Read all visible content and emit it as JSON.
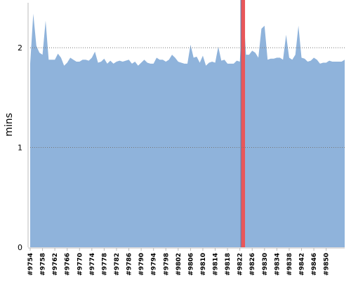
{
  "chart_data": {
    "type": "area",
    "title": "",
    "xlabel": "",
    "ylabel": "mins",
    "ylim": [
      0,
      2.45
    ],
    "yticks": [
      0,
      1,
      2
    ],
    "grid": "horizontal-dotted",
    "colors": {
      "area": "#8fb3db",
      "marker": "#e8575a",
      "marker_edge": "#5b7fb0",
      "grid": "#777777"
    },
    "x_start_build": 9754,
    "x_tick_labels": [
      "#9754",
      "#9758",
      "#9762",
      "#9766",
      "#9770",
      "#9774",
      "#9778",
      "#9782",
      "#9786",
      "#9790",
      "#9794",
      "#9798",
      "#9802",
      "#9806",
      "#9810",
      "#9814",
      "#9818",
      "#9822",
      "#9826",
      "#9830",
      "#9834",
      "#9838",
      "#9842",
      "#9846",
      "#9850"
    ],
    "series": [
      {
        "values": [
          1.84,
          2.34,
          2.02,
          1.95,
          1.93,
          2.27,
          1.88,
          1.88,
          1.88,
          1.94,
          1.9,
          1.82,
          1.85,
          1.9,
          1.88,
          1.86,
          1.86,
          1.88,
          1.88,
          1.87,
          1.9,
          1.96,
          1.85,
          1.86,
          1.89,
          1.84,
          1.87,
          1.84,
          1.86,
          1.87,
          1.86,
          1.87,
          1.88,
          1.84,
          1.86,
          1.82,
          1.85,
          1.88,
          1.85,
          1.84,
          1.84,
          1.9,
          1.88,
          1.88,
          1.86,
          1.88,
          1.93,
          1.9,
          1.86,
          1.85,
          1.84,
          1.84,
          2.03,
          1.9,
          1.91,
          1.85,
          1.92,
          1.82,
          1.85,
          1.86,
          1.85,
          2.01,
          1.87,
          1.88,
          1.84,
          1.84,
          1.84,
          1.87,
          1.86,
          2.46,
          1.93,
          1.93,
          1.97,
          1.95,
          1.9,
          2.19,
          2.22,
          1.88,
          1.89,
          1.89,
          1.9,
          1.9,
          1.88,
          2.13,
          1.9,
          1.88,
          1.93,
          2.22,
          1.9,
          1.89,
          1.86,
          1.87,
          1.9,
          1.88,
          1.84,
          1.85,
          1.85,
          1.87,
          1.86,
          1.86,
          1.86,
          1.86,
          1.88
        ]
      }
    ],
    "highlight_build": "#9823"
  }
}
